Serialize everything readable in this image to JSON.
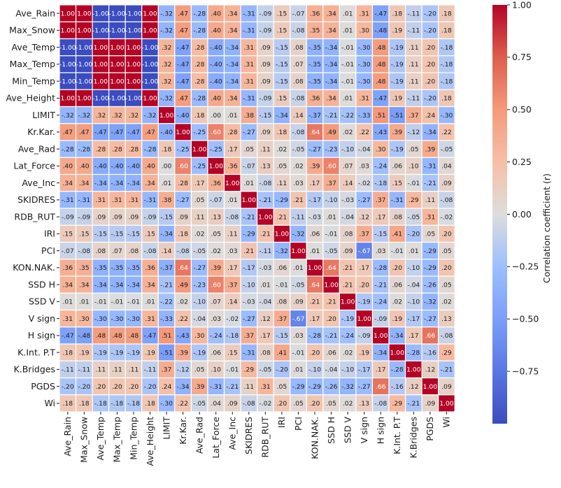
{
  "chart_data": {
    "type": "heatmap",
    "labels": [
      "Ave_Rain",
      "Max_Snow",
      "Ave_Temp",
      "Max_Temp",
      "Min_Temp",
      "Ave_Height",
      "LIMIT",
      "Kr.Kar.",
      "Ave_Rad",
      "Lat_Force",
      "Ave_Inc",
      "SKIDRES",
      "RDB_RUT",
      "IRI",
      "PCI",
      "KON.NAK.",
      "SSD H",
      "SSD V",
      "V sign",
      "H sign",
      "K.Int. P.T",
      "K.Bridges",
      "PGDS",
      "Wi"
    ],
    "matrix": [
      [
        1.0,
        1.0,
        -1.0,
        -1.0,
        -1.0,
        1.0,
        -0.32,
        0.47,
        -0.28,
        0.4,
        0.34,
        -0.31,
        -0.09,
        0.15,
        -0.07,
        0.36,
        0.34,
        0.01,
        0.31,
        -0.47,
        0.18,
        -0.11,
        -0.2,
        0.18
      ],
      [
        1.0,
        1.0,
        -1.0,
        -1.0,
        -1.0,
        1.0,
        -0.32,
        0.47,
        -0.28,
        0.4,
        0.34,
        -0.31,
        -0.09,
        0.15,
        -0.08,
        0.35,
        0.34,
        0.01,
        0.3,
        -0.48,
        0.19,
        -0.11,
        -0.2,
        0.18
      ],
      [
        -1.0,
        -1.0,
        1.0,
        1.0,
        1.0,
        -1.0,
        0.32,
        -0.47,
        0.28,
        -0.4,
        -0.34,
        0.31,
        0.09,
        -0.15,
        0.08,
        -0.35,
        -0.34,
        -0.01,
        -0.3,
        0.48,
        -0.19,
        0.11,
        0.2,
        -0.18
      ],
      [
        -1.0,
        -1.0,
        1.0,
        1.0,
        1.0,
        -1.0,
        0.32,
        -0.47,
        0.28,
        -0.4,
        -0.34,
        0.31,
        0.09,
        -0.15,
        0.07,
        -0.35,
        -0.34,
        -0.01,
        -0.3,
        0.48,
        -0.19,
        0.11,
        0.2,
        -0.18
      ],
      [
        -1.0,
        -1.0,
        1.0,
        1.0,
        1.0,
        -1.0,
        0.32,
        -0.47,
        0.28,
        -0.4,
        -0.34,
        0.31,
        0.09,
        -0.15,
        0.08,
        -0.35,
        -0.34,
        -0.01,
        -0.3,
        0.48,
        -0.19,
        0.11,
        0.2,
        -0.18
      ],
      [
        1.0,
        1.0,
        -1.0,
        -1.0,
        -1.0,
        1.0,
        -0.32,
        0.47,
        -0.28,
        0.4,
        0.34,
        -0.31,
        -0.09,
        0.15,
        -0.08,
        0.36,
        0.34,
        0.01,
        0.31,
        -0.47,
        0.19,
        -0.11,
        -0.2,
        0.18
      ],
      [
        -0.32,
        -0.32,
        0.32,
        0.32,
        0.32,
        -0.32,
        1.0,
        -0.4,
        0.18,
        0.0,
        0.01,
        0.38,
        -0.15,
        -0.34,
        0.14,
        -0.37,
        -0.21,
        -0.22,
        -0.33,
        0.51,
        -0.51,
        0.37,
        0.24,
        -0.3
      ],
      [
        0.47,
        0.47,
        -0.47,
        -0.47,
        -0.47,
        0.47,
        -0.4,
        1.0,
        -0.25,
        0.6,
        0.28,
        -0.27,
        0.09,
        0.18,
        -0.08,
        0.64,
        0.49,
        0.02,
        0.22,
        -0.43,
        0.39,
        -0.12,
        -0.34,
        0.22
      ],
      [
        -0.28,
        -0.28,
        0.28,
        0.28,
        0.28,
        -0.28,
        0.18,
        -0.25,
        1.0,
        -0.25,
        0.17,
        0.05,
        0.11,
        0.02,
        -0.05,
        -0.27,
        -0.23,
        -0.1,
        -0.04,
        0.3,
        -0.19,
        0.05,
        0.39,
        -0.05
      ],
      [
        0.4,
        0.4,
        -0.4,
        -0.4,
        -0.4,
        0.4,
        0.0,
        0.6,
        -0.25,
        1.0,
        0.36,
        -0.07,
        0.13,
        0.05,
        0.02,
        0.39,
        0.6,
        0.07,
        0.03,
        -0.24,
        0.06,
        0.1,
        -0.31,
        0.04
      ],
      [
        0.34,
        0.34,
        -0.34,
        -0.34,
        -0.34,
        0.34,
        0.01,
        0.28,
        0.17,
        0.36,
        1.0,
        0.01,
        -0.08,
        0.11,
        0.03,
        0.17,
        0.37,
        0.14,
        -0.02,
        -0.18,
        0.15,
        -0.01,
        -0.21,
        0.09
      ],
      [
        -0.31,
        -0.31,
        0.31,
        0.31,
        0.31,
        -0.31,
        0.38,
        -0.27,
        0.05,
        -0.07,
        0.01,
        1.0,
        -0.21,
        -0.29,
        0.21,
        -0.17,
        -0.1,
        -0.03,
        -0.27,
        0.37,
        -0.31,
        0.29,
        0.11,
        -0.08
      ],
      [
        -0.09,
        -0.09,
        0.09,
        0.09,
        0.09,
        -0.09,
        -0.15,
        0.09,
        0.11,
        0.13,
        -0.08,
        -0.21,
        1.0,
        0.21,
        -0.11,
        -0.03,
        0.01,
        -0.04,
        0.12,
        0.17,
        0.08,
        -0.05,
        0.31,
        -0.02
      ],
      [
        0.15,
        0.15,
        -0.15,
        -0.15,
        -0.15,
        0.15,
        -0.34,
        0.18,
        0.02,
        0.05,
        0.11,
        -0.29,
        0.21,
        1.0,
        -0.32,
        0.06,
        -0.01,
        0.08,
        0.37,
        -0.15,
        0.41,
        -0.2,
        0.05,
        0.2
      ],
      [
        -0.07,
        -0.08,
        0.08,
        0.07,
        0.08,
        -0.08,
        0.14,
        -0.08,
        -0.05,
        0.02,
        0.03,
        0.21,
        -0.11,
        -0.32,
        1.0,
        0.01,
        -0.05,
        0.09,
        -0.67,
        0.03,
        -0.01,
        0.01,
        -0.29,
        0.05
      ],
      [
        0.36,
        0.35,
        -0.35,
        -0.35,
        -0.35,
        0.36,
        -0.37,
        0.64,
        -0.27,
        0.39,
        0.17,
        -0.17,
        -0.03,
        0.06,
        0.01,
        1.0,
        0.64,
        0.21,
        0.17,
        -0.28,
        0.2,
        -0.1,
        -0.29,
        0.2
      ],
      [
        0.34,
        0.34,
        -0.34,
        -0.34,
        -0.34,
        0.34,
        -0.21,
        0.49,
        -0.23,
        0.6,
        0.37,
        -0.1,
        0.01,
        -0.01,
        -0.05,
        0.64,
        1.0,
        0.21,
        0.2,
        -0.21,
        0.06,
        -0.04,
        -0.26,
        0.05
      ],
      [
        0.01,
        0.01,
        -0.01,
        -0.01,
        -0.01,
        0.01,
        -0.22,
        0.02,
        -0.1,
        0.07,
        0.14,
        -0.03,
        -0.04,
        0.08,
        0.09,
        0.21,
        0.21,
        1.0,
        -0.19,
        -0.24,
        0.02,
        -0.1,
        -0.32,
        0.02
      ],
      [
        0.31,
        0.3,
        -0.3,
        -0.3,
        -0.3,
        0.31,
        -0.33,
        0.22,
        -0.04,
        0.03,
        -0.02,
        -0.27,
        0.12,
        0.37,
        -0.67,
        0.17,
        0.2,
        -0.19,
        1.0,
        -0.09,
        0.19,
        -0.17,
        -0.27,
        0.13
      ],
      [
        -0.47,
        -0.48,
        0.48,
        0.48,
        0.48,
        -0.47,
        0.51,
        -0.43,
        0.3,
        -0.24,
        -0.18,
        0.37,
        0.17,
        -0.15,
        0.03,
        -0.28,
        -0.21,
        -0.24,
        -0.09,
        1.0,
        -0.34,
        0.17,
        0.66,
        -0.08
      ],
      [
        0.18,
        0.19,
        -0.19,
        -0.19,
        -0.19,
        0.19,
        -0.51,
        0.39,
        -0.19,
        0.06,
        0.15,
        -0.31,
        0.08,
        0.41,
        -0.01,
        0.2,
        0.06,
        0.02,
        0.19,
        -0.34,
        1.0,
        -0.28,
        -0.16,
        0.29
      ],
      [
        -0.11,
        -0.11,
        0.11,
        0.11,
        0.11,
        -0.11,
        0.37,
        -0.12,
        0.05,
        0.1,
        -0.01,
        0.29,
        -0.05,
        -0.2,
        0.01,
        -0.1,
        -0.04,
        -0.1,
        -0.17,
        0.17,
        -0.28,
        1.0,
        0.12,
        -0.21
      ],
      [
        -0.2,
        -0.2,
        0.2,
        0.2,
        0.2,
        -0.2,
        0.24,
        -0.34,
        0.39,
        -0.31,
        -0.21,
        0.11,
        0.31,
        0.05,
        -0.29,
        -0.29,
        -0.26,
        -0.32,
        -0.27,
        0.66,
        -0.16,
        0.12,
        1.0,
        0.09
      ],
      [
        0.18,
        0.18,
        -0.18,
        -0.18,
        -0.18,
        0.18,
        -0.3,
        0.22,
        -0.05,
        0.04,
        0.09,
        -0.08,
        -0.02,
        0.2,
        0.05,
        0.2,
        0.05,
        0.02,
        0.13,
        -0.08,
        0.29,
        -0.21,
        0.09,
        1.0
      ]
    ],
    "value_format": "2 decimals, leading zero dropped for |v| < 1",
    "vmin": -1.0,
    "vmax": 1.0,
    "colormap": "coolwarm",
    "colors": {
      "low": "#3b4cc0",
      "mid": "#dddddd",
      "high": "#b40426"
    },
    "colorbar": {
      "label": "Correlation coefficient  (r)",
      "ticks": [
        1.0,
        0.75,
        0.5,
        0.25,
        0.0,
        -0.25,
        -0.5,
        -0.75
      ],
      "tick_labels": [
        "1.00",
        "0.75",
        "0.50",
        "0.25",
        "0.00",
        "−0.25",
        "−0.50",
        "−0.75"
      ]
    },
    "grid": true,
    "title": "",
    "xlabel": "",
    "ylabel": ""
  }
}
